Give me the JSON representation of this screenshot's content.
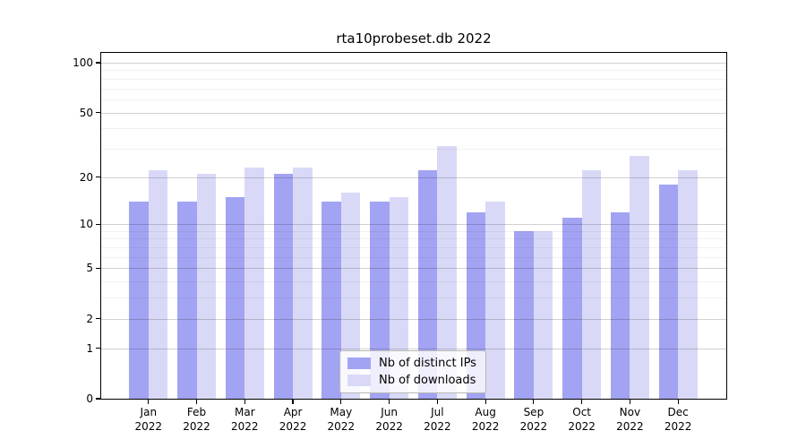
{
  "title": "rta10probeset.db 2022",
  "chart_data": {
    "type": "bar",
    "title": "rta10probeset.db 2022",
    "categories": [
      "Jan",
      "Feb",
      "Mar",
      "Apr",
      "May",
      "Jun",
      "Jul",
      "Aug",
      "Sep",
      "Oct",
      "Nov",
      "Dec"
    ],
    "year": "2022",
    "series": [
      {
        "name": "Nb of distinct IPs",
        "color": "#a3a3f3",
        "values": [
          14,
          14,
          15,
          21,
          14,
          14,
          22,
          12,
          9,
          11,
          12,
          18
        ]
      },
      {
        "name": "Nb of downloads",
        "color": "#d9d9f7",
        "values": [
          22,
          21,
          23,
          23,
          16,
          15,
          31,
          14,
          9,
          22,
          27,
          22
        ]
      }
    ],
    "xlabel": "",
    "ylabel": "",
    "y_scale": "log1p",
    "y_axis_ticks": [
      0,
      1,
      2,
      5,
      10,
      20,
      50,
      100
    ],
    "y_minor_ticks": [
      3,
      4,
      6,
      7,
      8,
      9,
      30,
      40,
      60,
      70,
      80,
      90
    ],
    "ylim": [
      0,
      115
    ],
    "grid": "on",
    "legend_position": "lower-center"
  },
  "colors": {
    "distinct_ips_bar": "#a3a3f3",
    "downloads_bar": "#d9d9f7",
    "axis": "#000000",
    "grid_major": "#d2d2d2",
    "grid_minor": "#ededed",
    "background": "#ffffff"
  }
}
